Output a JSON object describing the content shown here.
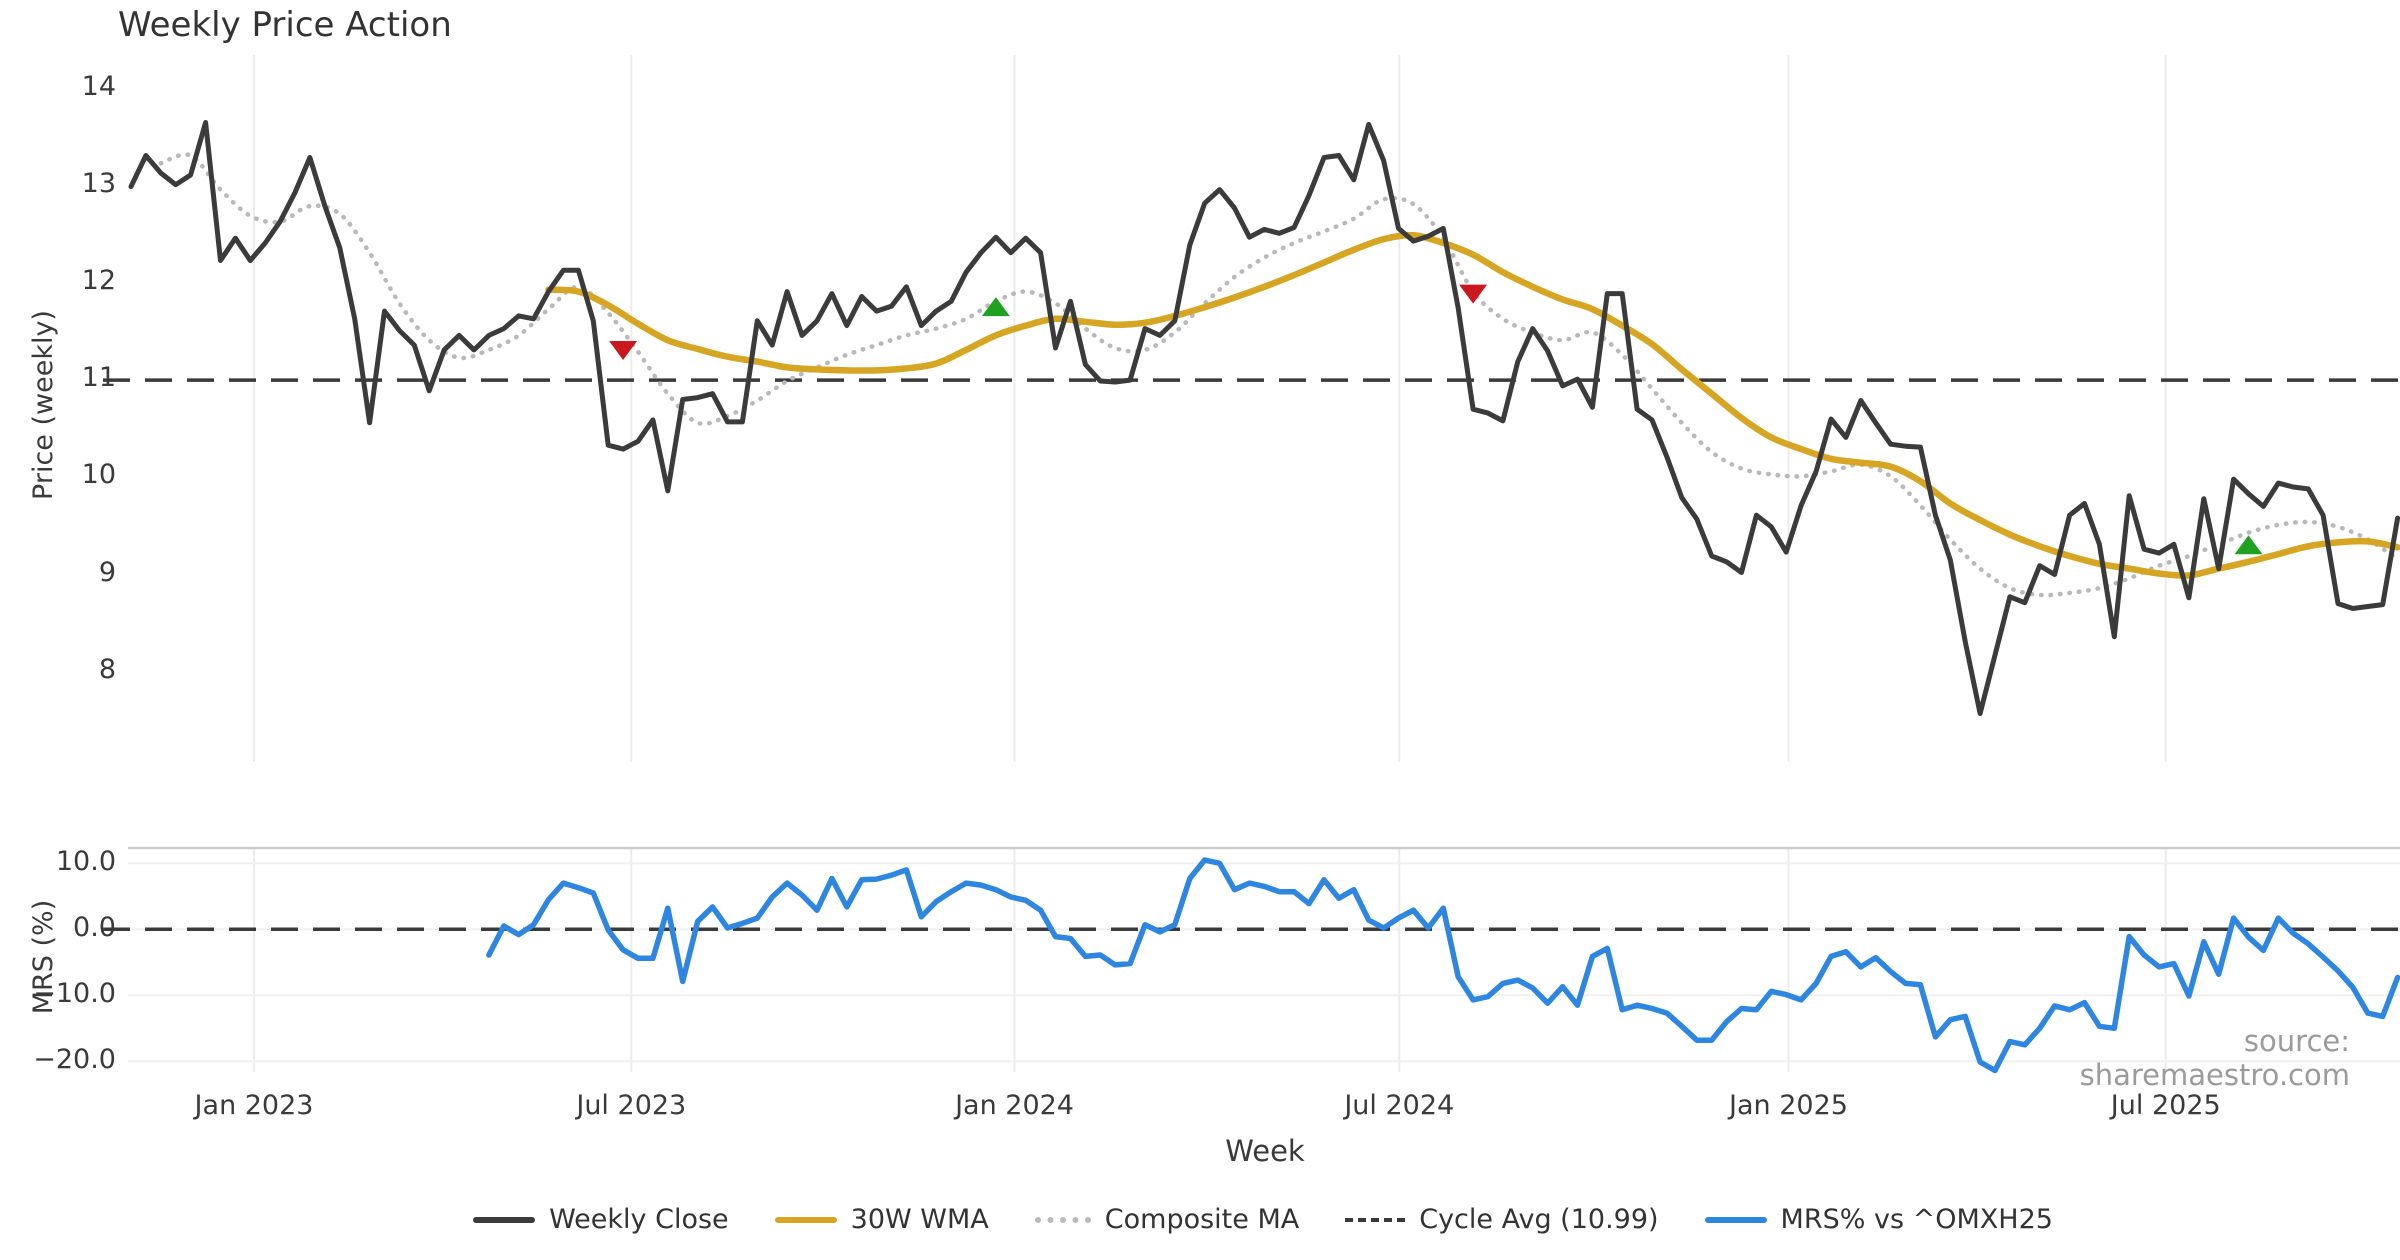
{
  "title": "Weekly Price Action",
  "source": "source: sharemaestro.com",
  "legend": {
    "items": [
      {
        "label": "Weekly Close",
        "style": "solid",
        "color": "#3b3b3b"
      },
      {
        "label": "30W WMA",
        "style": "solid",
        "color": "#d6a523"
      },
      {
        "label": "Composite MA",
        "style": "dotted",
        "color": "#b9b9b9"
      },
      {
        "label": "Cycle Avg (10.99)",
        "style": "dashed",
        "color": "#3a3a3a"
      },
      {
        "label": "MRS% vs ^OMXH25",
        "style": "solid",
        "color": "#2e86e0"
      }
    ]
  },
  "chart_data": [
    {
      "type": "line",
      "title": "Weekly Price Action",
      "xlabel": "Week",
      "ylabel": "Price (weekly)",
      "ylim": [
        7.1,
        14.4
      ],
      "grid": "vertical-only",
      "legend_position": "bottom",
      "x_unit": "week_index",
      "x_ticks": [
        {
          "week": 8.25,
          "label": "Jan 2023"
        },
        {
          "week": 33.55,
          "label": "Jul 2023"
        },
        {
          "week": 59.25,
          "label": "Jan 2024"
        },
        {
          "week": 85.05,
          "label": "Jul 2024"
        },
        {
          "week": 111.15,
          "label": "Jan 2025"
        },
        {
          "week": 136.45,
          "label": "Jul 2025"
        }
      ],
      "y_ticks": [
        {
          "v": 14,
          "label": "14"
        },
        {
          "v": 13,
          "label": "13"
        },
        {
          "v": 12,
          "label": "12"
        },
        {
          "v": 11,
          "label": "11"
        },
        {
          "v": 10,
          "label": "10"
        },
        {
          "v": 9,
          "label": "9"
        },
        {
          "v": 8,
          "label": "8"
        }
      ],
      "cycle_avg": 10.99,
      "series": [
        {
          "name": "Weekly Close",
          "color": "#3b3b3b",
          "start_week": 0,
          "values": [
            12.98,
            13.3,
            13.12,
            13.0,
            13.1,
            13.64,
            12.22,
            12.45,
            12.22,
            12.4,
            12.62,
            12.92,
            13.28,
            12.78,
            12.35,
            11.62,
            10.55,
            11.7,
            11.5,
            11.35,
            10.88,
            11.3,
            11.45,
            11.3,
            11.45,
            11.52,
            11.65,
            11.62,
            11.9,
            12.12,
            12.12,
            11.6,
            10.32,
            10.28,
            10.36,
            10.58,
            9.85,
            10.79,
            10.81,
            10.85,
            10.56,
            10.56,
            11.6,
            11.35,
            11.9,
            11.45,
            11.6,
            11.88,
            11.55,
            11.85,
            11.7,
            11.75,
            11.95,
            11.55,
            11.7,
            11.8,
            12.1,
            12.3,
            12.46,
            12.3,
            12.45,
            12.3,
            11.32,
            11.8,
            11.15,
            10.98,
            10.97,
            10.99,
            11.52,
            11.45,
            11.6,
            12.38,
            12.81,
            12.95,
            12.76,
            12.46,
            12.54,
            12.5,
            12.56,
            12.89,
            13.28,
            13.3,
            13.05,
            13.62,
            13.25,
            12.55,
            12.42,
            12.47,
            12.55,
            11.73,
            10.69,
            10.65,
            10.57,
            11.18,
            11.52,
            11.29,
            10.93,
            11.0,
            10.71,
            11.88,
            11.88,
            10.69,
            10.58,
            10.2,
            9.78,
            9.56,
            9.18,
            9.12,
            9.01,
            9.6,
            9.48,
            9.22,
            9.7,
            10.05,
            10.59,
            10.4,
            10.78,
            10.55,
            10.33,
            10.31,
            10.3,
            9.6,
            9.14,
            8.3,
            7.56,
            8.16,
            8.76,
            8.7,
            9.08,
            8.99,
            9.6,
            9.72,
            9.3,
            8.35,
            9.8,
            9.25,
            9.21,
            9.3,
            8.75,
            9.77,
            9.05,
            9.97,
            9.82,
            9.69,
            9.93,
            9.89,
            9.87,
            9.6,
            8.69,
            8.64,
            8.66,
            8.68,
            9.57
          ]
        },
        {
          "name": "30W WMA",
          "color": "#d6a523",
          "points": [
            [
              28,
              11.92
            ],
            [
              30,
              11.9
            ],
            [
              32,
              11.76
            ],
            [
              34,
              11.57
            ],
            [
              36,
              11.4
            ],
            [
              38,
              11.31
            ],
            [
              40,
              11.23
            ],
            [
              42,
              11.18
            ],
            [
              44,
              11.12
            ],
            [
              46,
              11.1
            ],
            [
              48,
              11.09
            ],
            [
              50,
              11.09
            ],
            [
              52,
              11.11
            ],
            [
              54,
              11.16
            ],
            [
              56,
              11.3
            ],
            [
              58,
              11.45
            ],
            [
              60,
              11.55
            ],
            [
              62,
              11.62
            ],
            [
              64,
              11.59
            ],
            [
              66,
              11.56
            ],
            [
              68,
              11.58
            ],
            [
              70,
              11.65
            ],
            [
              72,
              11.74
            ],
            [
              74,
              11.84
            ],
            [
              76,
              11.95
            ],
            [
              78,
              12.07
            ],
            [
              80,
              12.2
            ],
            [
              82,
              12.33
            ],
            [
              84,
              12.44
            ],
            [
              86,
              12.48
            ],
            [
              88,
              12.4
            ],
            [
              90,
              12.28
            ],
            [
              92,
              12.1
            ],
            [
              94,
              11.95
            ],
            [
              96,
              11.82
            ],
            [
              98,
              11.72
            ],
            [
              100,
              11.55
            ],
            [
              102,
              11.36
            ],
            [
              104,
              11.1
            ],
            [
              106,
              10.85
            ],
            [
              108,
              10.6
            ],
            [
              110,
              10.4
            ],
            [
              112,
              10.28
            ],
            [
              114,
              10.18
            ],
            [
              116,
              10.14
            ],
            [
              118,
              10.1
            ],
            [
              120,
              9.95
            ],
            [
              122,
              9.72
            ],
            [
              124,
              9.55
            ],
            [
              126,
              9.4
            ],
            [
              128,
              9.28
            ],
            [
              130,
              9.18
            ],
            [
              132,
              9.1
            ],
            [
              134,
              9.05
            ],
            [
              136,
              9.0
            ],
            [
              138,
              8.98
            ],
            [
              140,
              9.05
            ],
            [
              142,
              9.12
            ],
            [
              144,
              9.2
            ],
            [
              146,
              9.28
            ],
            [
              148,
              9.32
            ],
            [
              150,
              9.33
            ],
            [
              152,
              9.27
            ]
          ]
        },
        {
          "name": "Composite MA",
          "color": "#b9b9b9",
          "line_style": "dotted",
          "points": [
            [
              2,
              13.22
            ],
            [
              4,
              13.3
            ],
            [
              6,
              12.95
            ],
            [
              8,
              12.68
            ],
            [
              10,
              12.62
            ],
            [
              12,
              12.78
            ],
            [
              14,
              12.7
            ],
            [
              16,
              12.3
            ],
            [
              18,
              11.78
            ],
            [
              20,
              11.4
            ],
            [
              22,
              11.22
            ],
            [
              24,
              11.3
            ],
            [
              26,
              11.45
            ],
            [
              28,
              11.72
            ],
            [
              30,
              11.95
            ],
            [
              32,
              11.68
            ],
            [
              34,
              11.28
            ],
            [
              36,
              10.85
            ],
            [
              38,
              10.55
            ],
            [
              40,
              10.62
            ],
            [
              42,
              10.78
            ],
            [
              44,
              10.98
            ],
            [
              46,
              11.12
            ],
            [
              48,
              11.25
            ],
            [
              50,
              11.35
            ],
            [
              52,
              11.45
            ],
            [
              54,
              11.52
            ],
            [
              56,
              11.62
            ],
            [
              58,
              11.8
            ],
            [
              60,
              11.9
            ],
            [
              62,
              11.78
            ],
            [
              64,
              11.52
            ],
            [
              66,
              11.32
            ],
            [
              68,
              11.3
            ],
            [
              70,
              11.48
            ],
            [
              72,
              11.78
            ],
            [
              74,
              12.05
            ],
            [
              76,
              12.25
            ],
            [
              78,
              12.4
            ],
            [
              80,
              12.52
            ],
            [
              82,
              12.65
            ],
            [
              84,
              12.85
            ],
            [
              86,
              12.8
            ],
            [
              88,
              12.45
            ],
            [
              90,
              11.9
            ],
            [
              92,
              11.62
            ],
            [
              94,
              11.48
            ],
            [
              96,
              11.4
            ],
            [
              98,
              11.48
            ],
            [
              100,
              11.25
            ],
            [
              102,
              10.9
            ],
            [
              104,
              10.55
            ],
            [
              106,
              10.25
            ],
            [
              108,
              10.08
            ],
            [
              110,
              10.02
            ],
            [
              112,
              10.0
            ],
            [
              114,
              10.05
            ],
            [
              116,
              10.12
            ],
            [
              118,
              10.0
            ],
            [
              120,
              9.7
            ],
            [
              122,
              9.35
            ],
            [
              124,
              9.05
            ],
            [
              126,
              8.85
            ],
            [
              128,
              8.78
            ],
            [
              130,
              8.8
            ],
            [
              132,
              8.85
            ],
            [
              134,
              8.95
            ],
            [
              136,
              9.08
            ],
            [
              138,
              9.18
            ],
            [
              140,
              9.3
            ],
            [
              142,
              9.42
            ],
            [
              144,
              9.5
            ],
            [
              146,
              9.53
            ],
            [
              148,
              9.48
            ],
            [
              150,
              9.35
            ],
            [
              152,
              9.15
            ]
          ]
        }
      ],
      "markers": [
        {
          "week": 33,
          "value": 11.3,
          "type": "sell",
          "shape": "triangle-down",
          "color": "#c9191e"
        },
        {
          "week": 58,
          "value": 11.74,
          "type": "buy",
          "shape": "triangle-up",
          "color": "#21a121"
        },
        {
          "week": 90,
          "value": 11.88,
          "type": "sell",
          "shape": "triangle-down",
          "color": "#c9191e"
        },
        {
          "week": 142,
          "value": 9.29,
          "type": "buy",
          "shape": "triangle-up",
          "color": "#21a121"
        }
      ]
    },
    {
      "type": "line",
      "xlabel": "Week",
      "ylabel": "MRS (%)",
      "ylim": [
        -22,
        12.3
      ],
      "grid": "horizontal",
      "zero_line": 0.0,
      "y_ticks": [
        {
          "v": 10,
          "label": "10.0"
        },
        {
          "v": 0,
          "label": "0.0"
        },
        {
          "v": -10,
          "label": "−10.0"
        },
        {
          "v": -20,
          "label": "−20.0"
        }
      ],
      "series": [
        {
          "name": "MRS% vs ^OMXH25",
          "color": "#2e86e0",
          "start_week": 24,
          "values": [
            -3.9,
            0.5,
            -0.8,
            0.7,
            4.5,
            7.0,
            6.3,
            5.5,
            -0.1,
            -3.1,
            -4.4,
            -4.4,
            3.2,
            -7.9,
            1.2,
            3.4,
            0.2,
            0.9,
            1.7,
            4.9,
            7.0,
            5.2,
            2.9,
            7.7,
            3.4,
            7.5,
            7.6,
            8.2,
            9.0,
            1.9,
            4.2,
            5.7,
            7.0,
            6.7,
            6.0,
            4.9,
            4.4,
            2.9,
            -1.1,
            -1.4,
            -4.1,
            -3.9,
            -5.4,
            -5.2,
            0.7,
            -0.4,
            0.7,
            7.7,
            10.5,
            10.0,
            6.0,
            7.0,
            6.5,
            5.7,
            5.7,
            3.9,
            7.5,
            4.7,
            6.0,
            1.4,
            0.2,
            1.7,
            2.9,
            0.2,
            3.2,
            -7.2,
            -10.7,
            -10.2,
            -8.2,
            -7.7,
            -8.9,
            -11.2,
            -8.7,
            -11.5,
            -4.1,
            -2.9,
            -12.2,
            -11.5,
            -12.0,
            -12.7,
            -14.7,
            -16.8,
            -16.8,
            -14.0,
            -12.0,
            -12.2,
            -9.4,
            -9.9,
            -10.7,
            -8.2,
            -4.1,
            -3.4,
            -5.7,
            -4.3,
            -6.4,
            -8.2,
            -8.4,
            -16.3,
            -13.7,
            -13.2,
            -20.1,
            -21.4,
            -17.0,
            -17.5,
            -15.0,
            -11.6,
            -12.2,
            -11.1,
            -14.7,
            -15.0,
            -1.1,
            -3.9,
            -5.7,
            -5.2,
            -10.1,
            -1.9,
            -6.8,
            1.7,
            -1.2,
            -3.2,
            1.7,
            -0.6,
            -2.2,
            -4.2,
            -6.3,
            -8.8,
            -12.7,
            -13.2,
            -7.3
          ]
        }
      ]
    }
  ]
}
